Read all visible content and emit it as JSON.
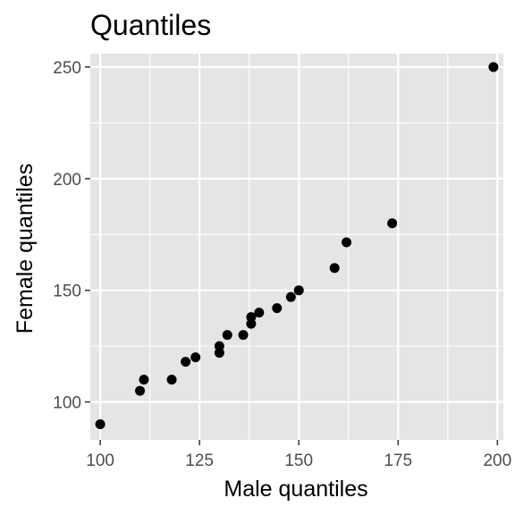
{
  "chart_data": {
    "type": "scatter",
    "title": "Quantiles",
    "xlabel": "Male quantiles",
    "ylabel": "Female quantiles",
    "xlim": [
      97.5,
      201.5
    ],
    "ylim": [
      83,
      256
    ],
    "x_ticks": [
      100,
      125,
      150,
      175,
      200
    ],
    "x_minor_ticks": [
      112.5,
      137.5,
      162.5,
      187.5
    ],
    "y_ticks": [
      100,
      150,
      200,
      250
    ],
    "y_minor_ticks": [
      125,
      175,
      225
    ],
    "grid": true,
    "legend": "none",
    "colors": {
      "panel": "#e5e5e5",
      "grid": "#ffffff",
      "point": "#000000",
      "tick": "#333333"
    },
    "points": [
      {
        "x": 100,
        "y": 90
      },
      {
        "x": 110,
        "y": 105
      },
      {
        "x": 111,
        "y": 110
      },
      {
        "x": 118,
        "y": 110
      },
      {
        "x": 121.5,
        "y": 118
      },
      {
        "x": 124,
        "y": 120
      },
      {
        "x": 130,
        "y": 122
      },
      {
        "x": 130,
        "y": 125
      },
      {
        "x": 132,
        "y": 130
      },
      {
        "x": 136,
        "y": 130
      },
      {
        "x": 138,
        "y": 135
      },
      {
        "x": 138,
        "y": 138
      },
      {
        "x": 140,
        "y": 140
      },
      {
        "x": 144.5,
        "y": 142
      },
      {
        "x": 148,
        "y": 147
      },
      {
        "x": 150,
        "y": 150
      },
      {
        "x": 159,
        "y": 160
      },
      {
        "x": 162,
        "y": 171.5
      },
      {
        "x": 173.5,
        "y": 180
      },
      {
        "x": 199,
        "y": 250
      }
    ]
  }
}
